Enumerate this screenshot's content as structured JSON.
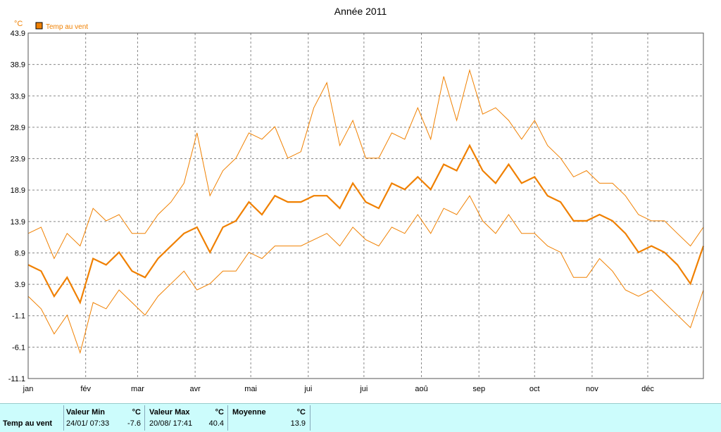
{
  "chart_data": {
    "type": "line",
    "title": "Année 2011",
    "ylabel": "°C",
    "ylim": [
      -11.1,
      43.9
    ],
    "yticks": [
      "43.9",
      "38.9",
      "33.9",
      "28.9",
      "23.9",
      "18.9",
      "13.9",
      "8.9",
      "3.9",
      "-1.1",
      "-6.1",
      "-11.1"
    ],
    "xlim": [
      1,
      365
    ],
    "xticks": [
      {
        "label": "jan",
        "day": 1
      },
      {
        "label": "fév",
        "day": 32
      },
      {
        "label": "mar",
        "day": 60
      },
      {
        "label": "avr",
        "day": 91
      },
      {
        "label": "mai",
        "day": 121
      },
      {
        "label": "jui",
        "day": 152
      },
      {
        "label": "jui",
        "day": 182
      },
      {
        "label": "aoû",
        "day": 213
      },
      {
        "label": "sep",
        "day": 244
      },
      {
        "label": "oct",
        "day": 274
      },
      {
        "label": "nov",
        "day": 305
      },
      {
        "label": "déc",
        "day": 335
      }
    ],
    "grid": true,
    "legend_position": "top-left",
    "color": "#f08000",
    "series": [
      {
        "name": "Temp au vent",
        "x_unit": "day of year",
        "x": [
          1,
          8,
          15,
          22,
          29,
          36,
          43,
          50,
          57,
          64,
          71,
          78,
          85,
          92,
          99,
          106,
          113,
          120,
          127,
          134,
          141,
          148,
          155,
          162,
          169,
          176,
          183,
          190,
          197,
          204,
          211,
          218,
          225,
          232,
          239,
          246,
          253,
          260,
          267,
          274,
          281,
          288,
          295,
          302,
          309,
          316,
          323,
          330,
          337,
          344,
          351,
          358,
          365
        ],
        "mean": [
          7,
          6,
          2,
          5,
          1,
          8,
          7,
          9,
          6,
          5,
          8,
          10,
          12,
          13,
          9,
          13,
          14,
          17,
          15,
          18,
          17,
          17,
          18,
          18,
          16,
          20,
          17,
          16,
          20,
          19,
          21,
          19,
          23,
          22,
          26,
          22,
          20,
          23,
          20,
          21,
          18,
          17,
          14,
          14,
          15,
          14,
          12,
          9,
          10,
          9,
          7,
          4,
          10
        ],
        "max": [
          12,
          13,
          8,
          12,
          10,
          16,
          14,
          15,
          12,
          12,
          15,
          17,
          20,
          28,
          18,
          22,
          24,
          28,
          27,
          29,
          24,
          25,
          32,
          36,
          26,
          30,
          24,
          24,
          28,
          27,
          32,
          27,
          37,
          30,
          38,
          31,
          32,
          30,
          27,
          30,
          26,
          24,
          21,
          22,
          20,
          20,
          18,
          15,
          14,
          14,
          12,
          10,
          13
        ],
        "min": [
          2,
          0,
          -4,
          -1,
          -7,
          1,
          0,
          3,
          1,
          -1,
          2,
          4,
          6,
          3,
          4,
          6,
          6,
          9,
          8,
          10,
          10,
          10,
          11,
          12,
          10,
          13,
          11,
          10,
          13,
          12,
          15,
          12,
          16,
          15,
          18,
          14,
          12,
          15,
          12,
          12,
          10,
          9,
          5,
          5,
          8,
          6,
          3,
          2,
          3,
          1,
          -1,
          -3,
          3
        ]
      }
    ],
    "x_gridlines_day": [
      32,
      60,
      91,
      121,
      152,
      182,
      213,
      244,
      274,
      305,
      335
    ]
  },
  "stats": {
    "row_label": "Temp au vent",
    "min_header": "Valeur Min",
    "max_header": "Valeur Max",
    "avg_header": "Moyenne",
    "unit": "°C",
    "min_datetime": "24/01/  07:33",
    "min_value": "-7.6",
    "max_datetime": "20/08/  17:41",
    "max_value": "40.4",
    "avg_value": "13.9"
  }
}
